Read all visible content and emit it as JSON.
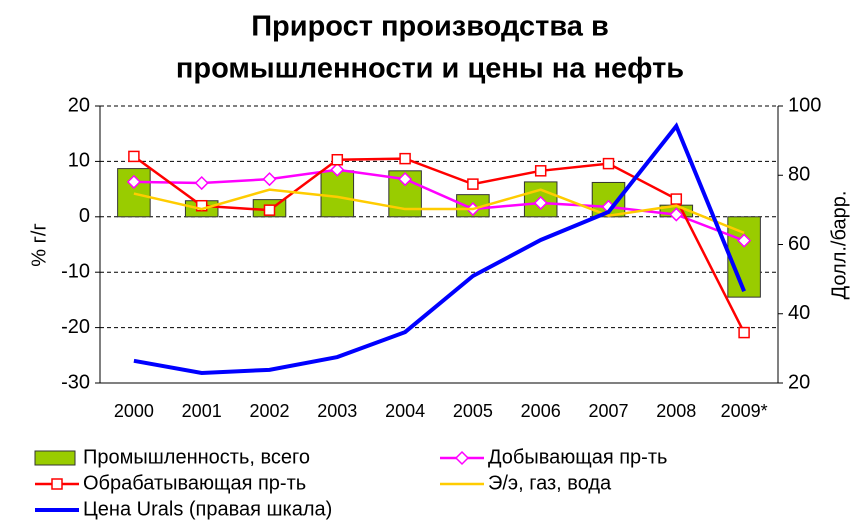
{
  "chart_data": {
    "type": "combo",
    "title": [
      "Прирост производства в",
      "промышленности и цены на нефть"
    ],
    "y_label": "% г/г",
    "y2_label": "Долл./барр.",
    "categories": [
      "2000",
      "2001",
      "2002",
      "2003",
      "2004",
      "2005",
      "2006",
      "2007",
      "2008",
      "2009*"
    ],
    "ylim": [
      -30,
      20
    ],
    "yticks": [
      -30,
      -20,
      -10,
      0,
      10,
      20
    ],
    "y2lim": [
      20,
      100
    ],
    "y2ticks": [
      20,
      40,
      60,
      80,
      100
    ],
    "grid": true,
    "series": [
      {
        "name": "Промышленность, всего",
        "type": "bar",
        "color": "#99cc00",
        "values": [
          8.7,
          2.9,
          3.1,
          8.3,
          8.3,
          4.0,
          6.3,
          6.2,
          2.1,
          -14.5
        ]
      },
      {
        "name": "Добывающая пр-ть",
        "type": "line",
        "marker": "diamond",
        "color": "#ff00ff",
        "values": [
          6.3,
          6.1,
          6.8,
          8.5,
          6.8,
          1.4,
          2.5,
          1.8,
          0.4,
          -4.3
        ]
      },
      {
        "name": "Обрабатывающая пр-ть",
        "type": "line",
        "marker": "square",
        "color": "#ff0000",
        "values": [
          10.9,
          2.0,
          1.2,
          10.3,
          10.5,
          5.9,
          8.3,
          9.6,
          3.2,
          -20.9
        ]
      },
      {
        "name": "Э/э, газ, вода",
        "type": "line",
        "color": "#ffcc00",
        "values": [
          4.2,
          1.4,
          4.9,
          3.6,
          1.4,
          1.4,
          4.9,
          0.2,
          2.0,
          -2.9
        ]
      },
      {
        "name": "Цена Urals (правая шкала)",
        "type": "line",
        "axis": "y2",
        "color": "#0000ff",
        "values": [
          26.4,
          22.9,
          23.8,
          27.5,
          34.7,
          50.9,
          61.3,
          69.4,
          94.2,
          46.5
        ]
      }
    ]
  }
}
